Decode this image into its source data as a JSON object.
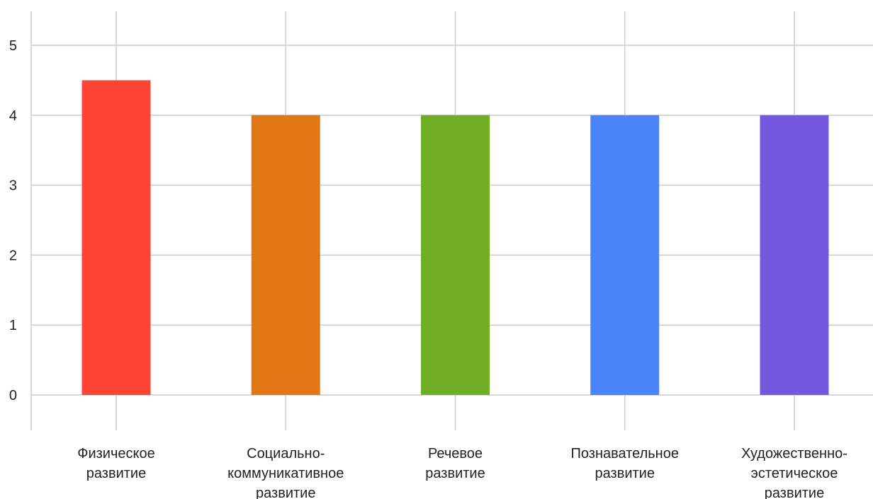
{
  "chart_data": {
    "type": "bar",
    "title": "",
    "xlabel": "",
    "ylabel": "",
    "categories": [
      [
        "Физическое",
        "развитие"
      ],
      [
        "Социально-",
        "коммуникативное",
        "развитие"
      ],
      [
        "Речевое",
        "развитие"
      ],
      [
        "Познавательное",
        "развитие"
      ],
      [
        "Художественно-",
        "эстетическое",
        "развитие"
      ]
    ],
    "values": [
      4.5,
      4,
      4,
      4,
      4
    ],
    "colors": [
      "#FF4433",
      "#E37716",
      "#70AE24",
      "#4985F8",
      "#7459E0"
    ],
    "ylim": [
      -0.5,
      5.5
    ],
    "yticks": [
      0,
      1,
      2,
      3,
      4,
      5
    ],
    "grid": true,
    "legend": "none"
  }
}
